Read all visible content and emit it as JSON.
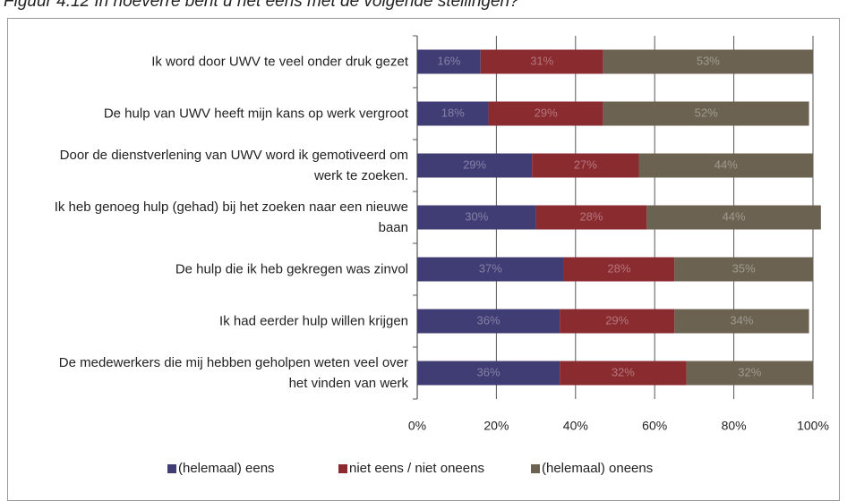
{
  "chart_data": {
    "type": "stacked_barh",
    "title": "Figuur 4.12 In hoeverre bent u het eens met de volgende stellingen?",
    "categories": [
      "Ik word door UWV te veel onder druk gezet",
      "De hulp van UWV heeft mijn kans op werk vergroot",
      "Door de dienstverlening van UWV word ik gemotiveerd om werk te zoeken.",
      "Ik heb genoeg hulp (gehad) bij het zoeken naar een nieuwe baan",
      "De hulp die ik heb gekregen was zinvol",
      "Ik had eerder hulp willen krijgen",
      "De medewerkers die mij hebben geholpen weten veel over het vinden van werk"
    ],
    "series": [
      {
        "name": "(helemaal) eens",
        "color": "#403c74",
        "values": [
          16,
          18,
          29,
          30,
          37,
          36,
          36
        ],
        "value_labels": [
          "16%",
          "18%",
          "29%",
          "30%",
          "37%",
          "36%",
          "36%"
        ]
      },
      {
        "name": "niet eens / niet oneens",
        "color": "#8a2b30",
        "values": [
          31,
          29,
          27,
          28,
          28,
          29,
          32
        ],
        "value_labels": [
          "31%",
          "29%",
          "27%",
          "28%",
          "28%",
          "29%",
          "32%"
        ]
      },
      {
        "name": "(helemaal) oneens",
        "color": "#6c6252",
        "values": [
          53,
          52,
          44,
          44,
          35,
          34,
          32
        ],
        "value_labels": [
          "53%",
          "52%",
          "44%",
          "44%",
          "35%",
          "34%",
          "32%"
        ]
      }
    ],
    "xlim": [
      0,
      100
    ],
    "xticks": [
      {
        "value": 0,
        "label": "0%"
      },
      {
        "value": 20,
        "label": "20%"
      },
      {
        "value": 40,
        "label": "40%"
      },
      {
        "value": 60,
        "label": "60%"
      },
      {
        "value": 80,
        "label": "80%"
      },
      {
        "value": 100,
        "label": "100%"
      }
    ],
    "grid": true,
    "legend": "bottom"
  }
}
